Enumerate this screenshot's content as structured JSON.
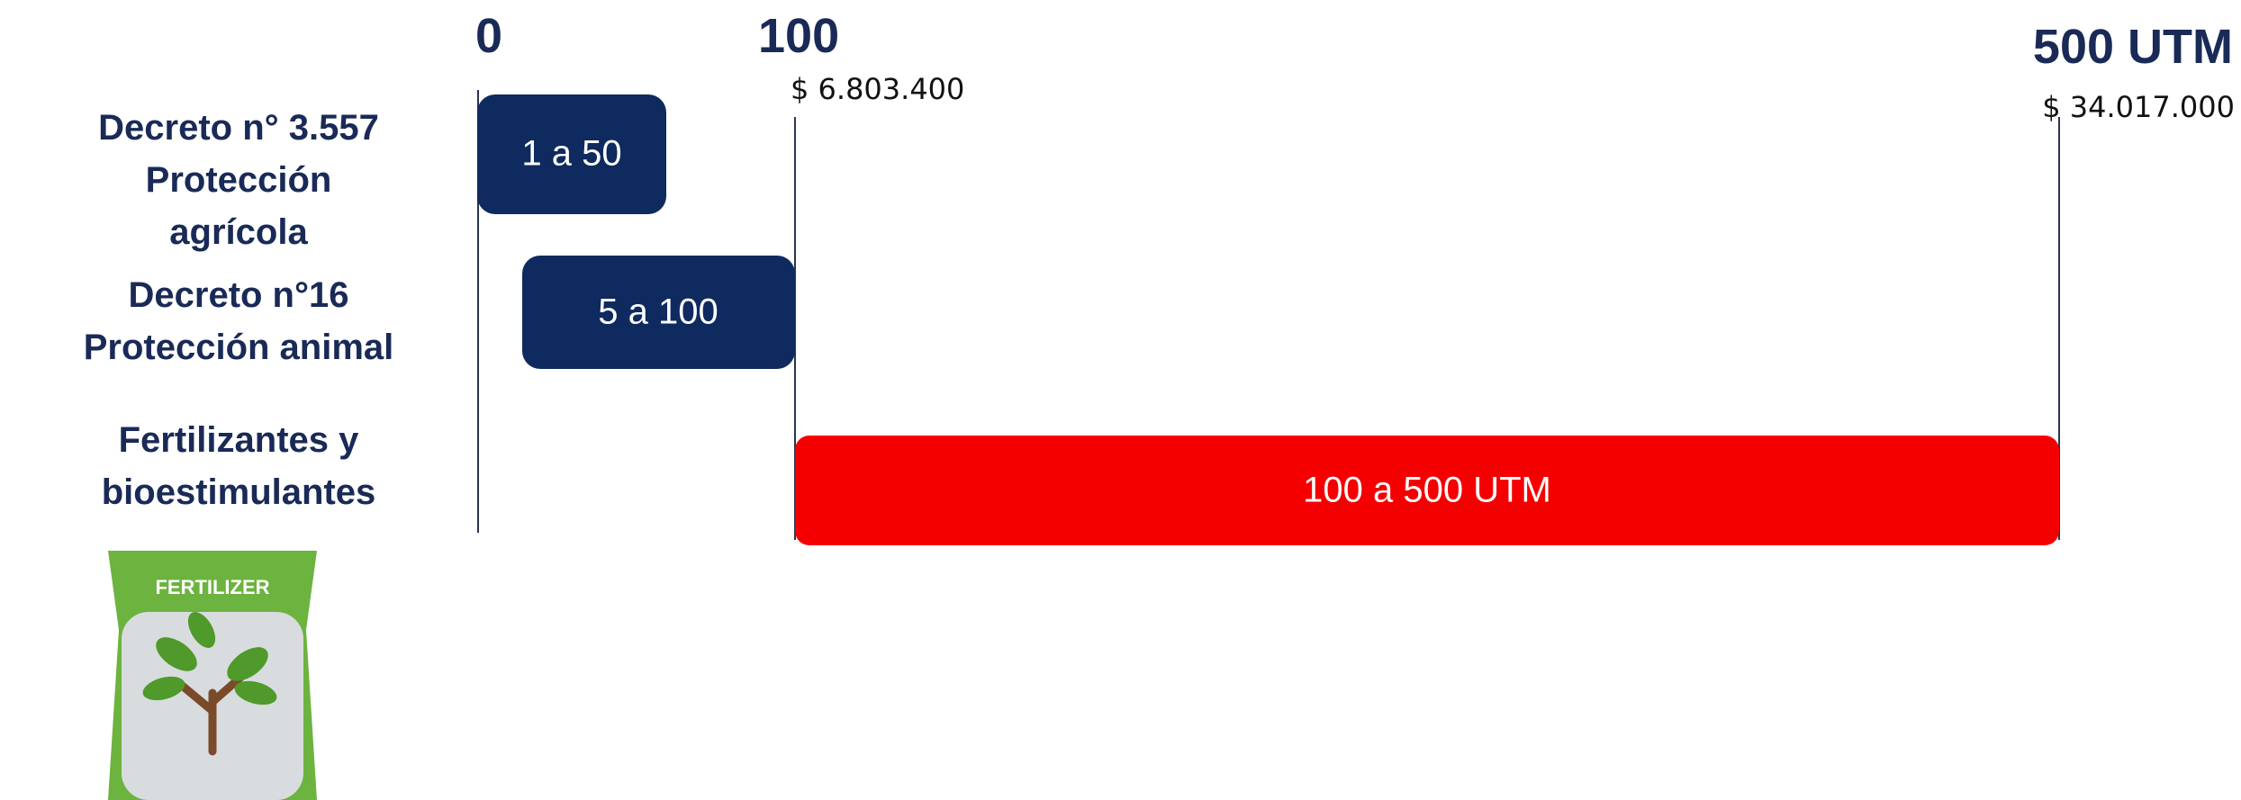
{
  "axis": {
    "ticks": [
      "0",
      "100",
      "500 UTM"
    ],
    "amounts": [
      "$ 6.803.400",
      "$ 34.017.000"
    ]
  },
  "rows": [
    {
      "label": [
        "Decreto n° 3.557",
        "Protección",
        "agrícola"
      ],
      "bar": "1 a 50"
    },
    {
      "label": [
        "Decreto n°16",
        "Protección animal"
      ],
      "bar": "5 a 100"
    },
    {
      "label": [
        "Fertilizantes y",
        "bioestimulantes"
      ],
      "bar": "100 a 500 UTM"
    }
  ],
  "icon": {
    "label": "FERTILIZER"
  }
}
